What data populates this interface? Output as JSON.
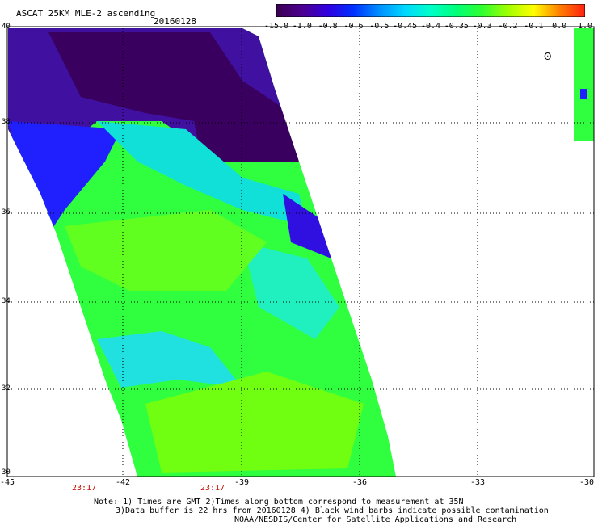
{
  "header": {
    "title": "ASCAT 25KM MLE-2 ascending",
    "date": "20160128"
  },
  "colorbar": {
    "labels": [
      "-15.0",
      "-1.0",
      "-0.8",
      "-0.6",
      "-0.5",
      "-0.45",
      "-0.4",
      "-0.35",
      "-0.3",
      "-0.2",
      "-0.1",
      "0.0",
      "1.0"
    ],
    "colors": [
      "#3a0050",
      "#4b0090",
      "#3000e0",
      "#0030ff",
      "#0090ff",
      "#00d8ff",
      "#00ffc8",
      "#00ff78",
      "#30ff30",
      "#a0ff00",
      "#ffff00",
      "#ff8000",
      "#ff2010"
    ]
  },
  "axes": {
    "lat_labels": [
      "40",
      "38",
      "36",
      "34",
      "32",
      "30"
    ],
    "lon_labels": [
      "-45",
      "-42",
      "-39",
      "-36",
      "-33",
      "-30"
    ]
  },
  "times": [
    "23:17",
    "23:17"
  ],
  "notes": [
    "Note: 1) Times are GMT 2)Times along bottom correspond to measurement at 35N",
    "3)Data buffer is 22 hrs from 20160128 4) Black wind barbs indicate possible contamination",
    "NOAA/NESDIS/Center for Satellite Applications and Research"
  ],
  "colors": {
    "strong_neg": "#3a0050",
    "neg": "#3000e0",
    "mid": "#00d8ff",
    "weak": "#30ff30",
    "label_red": "#c01000"
  }
}
